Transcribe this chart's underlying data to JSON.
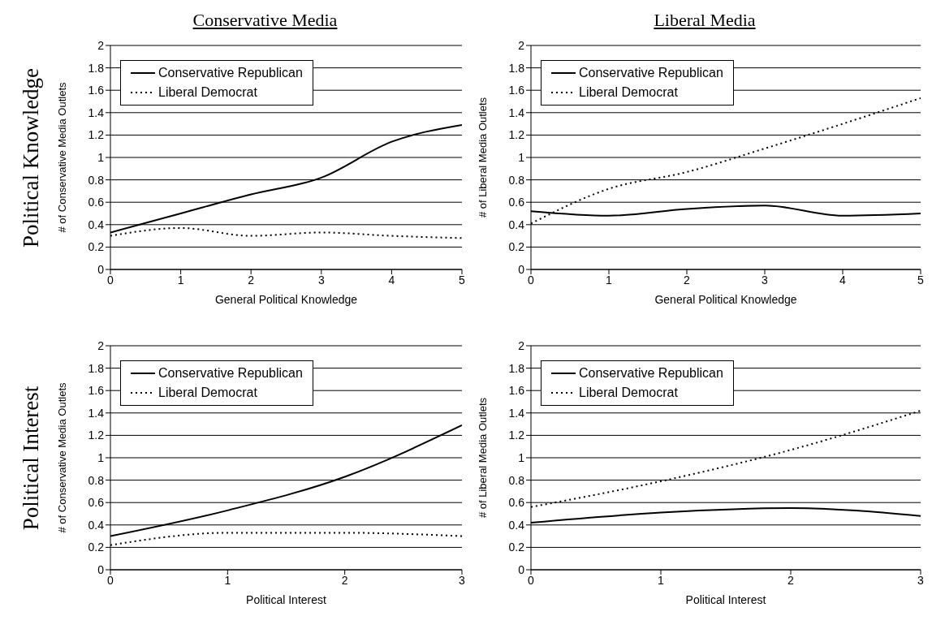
{
  "chart_data": [
    {
      "type": "line",
      "title": "Conservative Media",
      "annotations": [
        "Political Knowledge"
      ],
      "xlabel": "General Political Knowledge",
      "ylabel": "# of Conservative Media Outlets",
      "x": [
        0,
        1,
        2,
        3,
        4,
        5
      ],
      "xlim": [
        0,
        5
      ],
      "xticks": [
        0,
        1,
        2,
        3,
        4,
        5
      ],
      "ylim": [
        0,
        2
      ],
      "yticks": [
        0,
        0.2,
        0.4,
        0.6,
        0.8,
        1,
        1.2,
        1.4,
        1.6,
        1.8,
        2
      ],
      "grid": "y",
      "legend": "top left",
      "marker": "none",
      "series": [
        {
          "name": "Conservative Republican",
          "color": "#000000",
          "line_style": "solid",
          "values": [
            0.33,
            0.5,
            0.67,
            0.82,
            1.14,
            1.29
          ]
        },
        {
          "name": "Liberal Democrat",
          "color": "#000000",
          "line_style": "dotted",
          "values": [
            0.3,
            0.37,
            0.3,
            0.33,
            0.3,
            0.28
          ]
        }
      ]
    },
    {
      "type": "line",
      "title": "Liberal Media",
      "xlabel": "General Political Knowledge",
      "ylabel": "# of Liberal Media Outlets",
      "x": [
        0,
        1,
        2,
        3,
        4,
        5
      ],
      "xlim": [
        0,
        5
      ],
      "xticks": [
        0,
        1,
        2,
        3,
        4,
        5
      ],
      "ylim": [
        0,
        2
      ],
      "yticks": [
        0,
        0.2,
        0.4,
        0.6,
        0.8,
        1,
        1.2,
        1.4,
        1.6,
        1.8,
        2
      ],
      "grid": "y",
      "legend": "top left",
      "marker": "none",
      "series": [
        {
          "name": "Conservative Republican",
          "color": "#000000",
          "line_style": "solid",
          "values": [
            0.52,
            0.48,
            0.54,
            0.57,
            0.48,
            0.5
          ]
        },
        {
          "name": "Liberal Democrat",
          "color": "#000000",
          "line_style": "dotted",
          "values": [
            0.41,
            0.72,
            0.87,
            1.08,
            1.3,
            1.53
          ]
        }
      ]
    },
    {
      "type": "line",
      "annotations": [
        "Political Interest"
      ],
      "xlabel": "Political Interest",
      "ylabel": "# of Conservative Media Outlets",
      "x": [
        0,
        1,
        2,
        3
      ],
      "xlim": [
        0,
        3
      ],
      "xticks": [
        0,
        1,
        2,
        3
      ],
      "ylim": [
        0,
        2
      ],
      "yticks": [
        0,
        0.2,
        0.4,
        0.6,
        0.8,
        1,
        1.2,
        1.4,
        1.6,
        1.8,
        2
      ],
      "grid": "y",
      "legend": "top left",
      "marker": "none",
      "series": [
        {
          "name": "Conservative Republican",
          "color": "#000000",
          "line_style": "solid",
          "values": [
            0.3,
            0.53,
            0.83,
            1.29
          ]
        },
        {
          "name": "Liberal Democrat",
          "color": "#000000",
          "line_style": "dotted",
          "values": [
            0.22,
            0.33,
            0.33,
            0.3
          ]
        }
      ]
    },
    {
      "type": "line",
      "xlabel": "Political Interest",
      "ylabel": "# of Liberal Media Outlets",
      "x": [
        0,
        1,
        2,
        3
      ],
      "xlim": [
        0,
        3
      ],
      "xticks": [
        0,
        1,
        2,
        3
      ],
      "ylim": [
        0,
        2
      ],
      "yticks": [
        0,
        0.2,
        0.4,
        0.6,
        0.8,
        1,
        1.2,
        1.4,
        1.6,
        1.8,
        2
      ],
      "grid": "y",
      "legend": "top left",
      "marker": "none",
      "series": [
        {
          "name": "Conservative Republican",
          "color": "#000000",
          "line_style": "solid",
          "values": [
            0.42,
            0.51,
            0.55,
            0.48
          ]
        },
        {
          "name": "Liberal Democrat",
          "color": "#000000",
          "line_style": "dotted",
          "values": [
            0.56,
            0.79,
            1.07,
            1.42
          ]
        }
      ]
    }
  ]
}
